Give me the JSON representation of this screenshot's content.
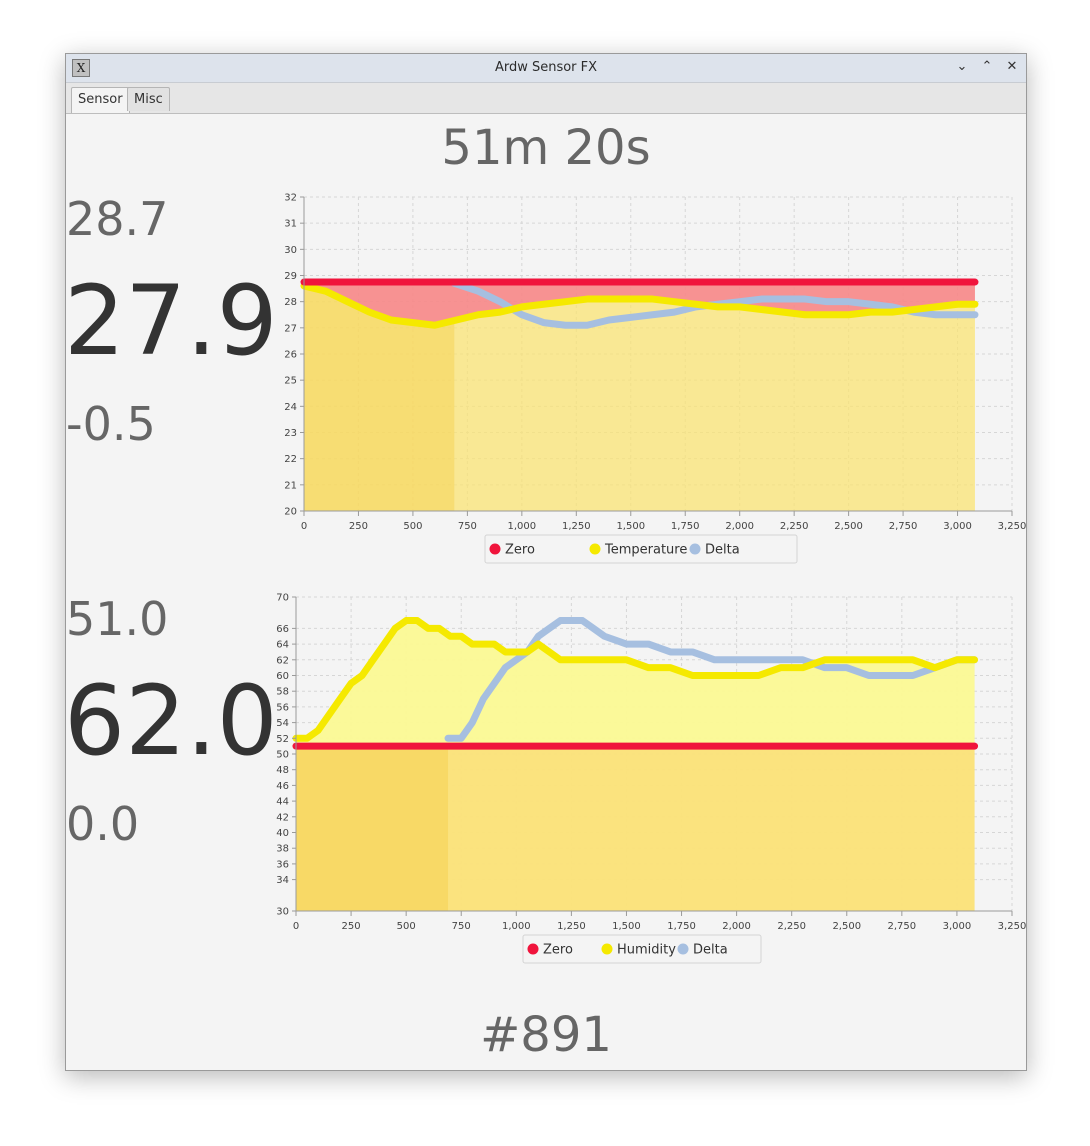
{
  "window": {
    "title": "Ardw Sensor FX",
    "app_icon": "x-app-icon",
    "controls": [
      "minimize",
      "maximize",
      "close"
    ]
  },
  "tabs": [
    {
      "label": "Sensor",
      "active": true
    },
    {
      "label": "Misc",
      "active": false
    }
  ],
  "elapsed": "51m 20s",
  "temperature_panel": {
    "max": "28.7",
    "current": "27.9",
    "delta": "-0.5"
  },
  "humidity_panel": {
    "max": "51.0",
    "current": "62.0",
    "delta": "0.0"
  },
  "counter": "#891",
  "colors": {
    "zero": "#f0143c",
    "temperature": "#f5e900",
    "delta": "#a6bfe0",
    "fill_yellow": "#fbe36f",
    "fill_red": "#f78787"
  },
  "chart_data": [
    {
      "type": "area",
      "xlim": [
        0,
        3250
      ],
      "ylim": [
        20,
        32
      ],
      "x_ticks": [
        "0",
        "250",
        "500",
        "750",
        "1,000",
        "1,250",
        "1,500",
        "1,750",
        "2,000",
        "2,250",
        "2,500",
        "2,750",
        "3,000",
        "3,250"
      ],
      "y_ticks": [
        "20",
        "21",
        "22",
        "23",
        "24",
        "25",
        "26",
        "27",
        "28",
        "29",
        "30",
        "31",
        "32"
      ],
      "legend": [
        "Zero",
        "Temperature",
        "Delta"
      ],
      "legend_position": "bottom",
      "grid": true,
      "series": [
        {
          "name": "Zero",
          "x": [
            0,
            3080
          ],
          "values": [
            28.75,
            28.75
          ]
        },
        {
          "name": "Temperature",
          "x": [
            0,
            100,
            200,
            300,
            400,
            500,
            600,
            700,
            800,
            900,
            1000,
            1100,
            1200,
            1300,
            1400,
            1500,
            1600,
            1700,
            1800,
            1900,
            2000,
            2100,
            2200,
            2300,
            2400,
            2500,
            2600,
            2700,
            2800,
            2900,
            3000,
            3080
          ],
          "values": [
            28.6,
            28.4,
            28.0,
            27.6,
            27.3,
            27.2,
            27.1,
            27.3,
            27.5,
            27.6,
            27.8,
            27.9,
            28.0,
            28.1,
            28.1,
            28.1,
            28.1,
            28.0,
            27.9,
            27.8,
            27.8,
            27.7,
            27.6,
            27.5,
            27.5,
            27.5,
            27.6,
            27.6,
            27.7,
            27.8,
            27.9,
            27.9
          ]
        },
        {
          "name": "Delta",
          "x": [
            690,
            800,
            900,
            1000,
            1100,
            1200,
            1300,
            1400,
            1500,
            1600,
            1700,
            1800,
            1900,
            2000,
            2100,
            2200,
            2300,
            2400,
            2500,
            2600,
            2700,
            2800,
            2900,
            3000,
            3080
          ],
          "values": [
            28.7,
            28.4,
            28.0,
            27.5,
            27.2,
            27.1,
            27.1,
            27.3,
            27.4,
            27.5,
            27.6,
            27.8,
            27.9,
            28.0,
            28.1,
            28.1,
            28.1,
            28.0,
            28.0,
            27.9,
            27.8,
            27.6,
            27.5,
            27.5,
            27.5
          ]
        }
      ]
    },
    {
      "type": "area",
      "xlim": [
        0,
        3250
      ],
      "ylim": [
        30,
        70
      ],
      "x_ticks": [
        "0",
        "250",
        "500",
        "750",
        "1,000",
        "1,250",
        "1,500",
        "1,750",
        "2,000",
        "2,250",
        "2,500",
        "2,750",
        "3,000",
        "3,250"
      ],
      "y_ticks": [
        "30",
        "34",
        "36",
        "38",
        "40",
        "42",
        "44",
        "46",
        "48",
        "50",
        "52",
        "54",
        "56",
        "58",
        "60",
        "62",
        "64",
        "66",
        "70"
      ],
      "legend": [
        "Zero",
        "Humidity",
        "Delta"
      ],
      "legend_position": "bottom",
      "grid": true,
      "series": [
        {
          "name": "Zero",
          "x": [
            0,
            3080
          ],
          "values": [
            51.0,
            51.0
          ]
        },
        {
          "name": "Humidity",
          "x": [
            0,
            50,
            100,
            150,
            200,
            250,
            300,
            350,
            400,
            450,
            500,
            550,
            600,
            650,
            700,
            750,
            800,
            850,
            900,
            950,
            1000,
            1050,
            1100,
            1150,
            1200,
            1250,
            1300,
            1350,
            1400,
            1450,
            1500,
            1600,
            1700,
            1800,
            1900,
            2000,
            2100,
            2200,
            2300,
            2400,
            2500,
            2600,
            2700,
            2800,
            2900,
            3000,
            3080
          ],
          "values": [
            52,
            52,
            53,
            55,
            57,
            59,
            60,
            62,
            64,
            66,
            67,
            67,
            66,
            66,
            65,
            65,
            64,
            64,
            64,
            63,
            63,
            63,
            64,
            63,
            62,
            62,
            62,
            62,
            62,
            62,
            62,
            61,
            61,
            60,
            60,
            60,
            60,
            61,
            61,
            62,
            62,
            62,
            62,
            62,
            61,
            62,
            62
          ]
        },
        {
          "name": "Delta",
          "x": [
            690,
            750,
            800,
            850,
            900,
            950,
            1000,
            1050,
            1100,
            1150,
            1200,
            1250,
            1300,
            1350,
            1400,
            1500,
            1600,
            1700,
            1800,
            1900,
            2000,
            2100,
            2200,
            2300,
            2400,
            2500,
            2600,
            2700,
            2800,
            2900,
            3000,
            3080
          ],
          "values": [
            52,
            52,
            54,
            57,
            59,
            61,
            62,
            63,
            65,
            66,
            67,
            67,
            67,
            66,
            65,
            64,
            64,
            63,
            63,
            62,
            62,
            62,
            62,
            62,
            61,
            61,
            60,
            60,
            60,
            61,
            62,
            62
          ]
        }
      ]
    }
  ]
}
